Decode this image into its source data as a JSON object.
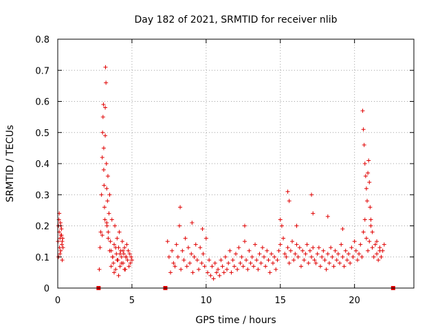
{
  "chart_data": {
    "type": "scatter",
    "title": "Day 182 of 2021, SRMTID for receiver nlib",
    "xlabel": "GPS time / hours",
    "ylabel": "SRMTID / TECUs",
    "xlim": [
      0,
      24
    ],
    "ylim": [
      0,
      0.8
    ],
    "xticks": [
      0,
      5,
      10,
      15,
      20
    ],
    "xtick_labels": [
      "0",
      "5",
      "10",
      "15",
      "20"
    ],
    "yticks": [
      0,
      0.1,
      0.2,
      0.3,
      0.4,
      0.5,
      0.6,
      0.7,
      0.8
    ],
    "ytick_labels": [
      "0",
      "0.1",
      "0.2",
      "0.3",
      "0.4",
      "0.5",
      "0.6",
      "0.7",
      "0.8"
    ],
    "grid": true,
    "marker": "plus",
    "color": "#e00000",
    "zero_markers_x": [
      2.75,
      7.25,
      22.6
    ],
    "series": [
      {
        "name": "srmtid",
        "x": [
          0.02,
          0.05,
          0.08,
          0.1,
          0.12,
          0.15,
          0.18,
          0.2,
          0.22,
          0.25,
          0.28,
          0.3,
          0.33,
          0.35,
          0.05,
          0.1,
          0.15,
          0.2,
          0.25,
          0.3,
          2.8,
          2.85,
          2.9,
          2.95,
          3.0,
          3.02,
          3.05,
          3.08,
          3.1,
          3.12,
          3.15,
          3.18,
          3.2,
          3.22,
          3.25,
          3.28,
          3.3,
          3.32,
          3.35,
          3.38,
          3.4,
          3.45,
          3.5,
          3.55,
          3.6,
          3.65,
          3.7,
          3.75,
          3.8,
          3.85,
          3.9,
          3.95,
          4.0,
          4.05,
          4.1,
          4.15,
          4.2,
          4.25,
          4.3,
          4.35,
          4.4,
          4.45,
          4.5,
          4.55,
          4.6,
          4.65,
          4.7,
          4.75,
          4.8,
          4.85,
          4.9,
          4.95,
          5.0,
          3.0,
          3.1,
          3.2,
          3.3,
          3.4,
          3.5,
          3.6,
          3.7,
          3.8,
          3.9,
          4.0,
          4.1,
          4.2,
          4.3,
          4.4,
          4.5,
          4.6,
          7.4,
          7.5,
          7.6,
          7.7,
          7.8,
          7.9,
          8.0,
          8.1,
          8.2,
          8.3,
          8.4,
          8.5,
          8.6,
          8.7,
          8.8,
          8.9,
          9.0,
          9.1,
          9.2,
          9.3,
          9.4,
          9.5,
          9.6,
          9.7,
          9.8,
          9.9,
          10.0,
          10.1,
          10.2,
          10.3,
          10.4,
          10.5,
          10.6,
          10.7,
          10.8,
          10.9,
          11.0,
          11.1,
          11.2,
          11.3,
          11.4,
          11.5,
          11.6,
          11.7,
          11.8,
          11.9,
          12.0,
          12.1,
          12.2,
          12.3,
          12.4,
          12.5,
          12.6,
          12.7,
          12.8,
          12.9,
          13.0,
          13.1,
          13.2,
          13.3,
          13.4,
          13.5,
          13.6,
          13.7,
          13.8,
          13.9,
          14.0,
          14.1,
          14.2,
          14.3,
          14.4,
          14.5,
          14.6,
          14.7,
          14.8,
          14.9,
          15.0,
          15.1,
          15.2,
          15.3,
          15.4,
          15.5,
          15.6,
          15.7,
          15.8,
          15.9,
          16.0,
          16.1,
          16.2,
          16.3,
          16.4,
          16.5,
          16.6,
          16.7,
          16.8,
          16.9,
          17.0,
          17.1,
          17.2,
          17.3,
          17.4,
          17.5,
          17.6,
          17.7,
          17.8,
          17.9,
          18.0,
          18.1,
          18.2,
          18.3,
          18.4,
          18.5,
          18.6,
          18.7,
          18.8,
          18.9,
          19.0,
          19.1,
          19.2,
          19.3,
          19.4,
          19.5,
          19.6,
          19.7,
          19.8,
          19.9,
          20.0,
          20.1,
          20.2,
          20.3,
          20.4,
          20.5,
          20.6,
          20.7,
          20.8,
          20.9,
          21.0,
          21.1,
          21.2,
          21.3,
          21.4,
          21.5,
          21.6,
          21.7,
          21.8,
          21.9,
          22.0,
          8.25,
          9.05,
          9.75,
          12.6,
          15.0,
          15.5,
          15.6,
          16.1,
          17.1,
          17.2,
          18.2,
          19.2,
          20.55,
          20.6,
          20.65,
          20.7,
          20.75,
          20.8,
          20.85,
          20.9,
          20.95,
          21.0,
          21.05,
          21.1,
          21.2,
          21.5,
          21.7
        ],
        "y": [
          0.15,
          0.2,
          0.22,
          0.18,
          0.13,
          0.16,
          0.21,
          0.12,
          0.17,
          0.19,
          0.14,
          0.09,
          0.16,
          0.13,
          0.1,
          0.24,
          0.11,
          0.2,
          0.17,
          0.15,
          0.06,
          0.13,
          0.18,
          0.3,
          0.42,
          0.5,
          0.55,
          0.59,
          0.45,
          0.33,
          0.26,
          0.22,
          0.58,
          0.71,
          0.66,
          0.4,
          0.32,
          0.2,
          0.28,
          0.36,
          0.18,
          0.24,
          0.3,
          0.15,
          0.12,
          0.22,
          0.1,
          0.08,
          0.14,
          0.2,
          0.06,
          0.11,
          0.16,
          0.09,
          0.13,
          0.18,
          0.07,
          0.12,
          0.1,
          0.15,
          0.08,
          0.11,
          0.13,
          0.06,
          0.1,
          0.14,
          0.09,
          0.12,
          0.07,
          0.11,
          0.08,
          0.1,
          0.09,
          0.17,
          0.38,
          0.49,
          0.21,
          0.16,
          0.12,
          0.07,
          0.1,
          0.05,
          0.13,
          0.09,
          0.04,
          0.11,
          0.08,
          0.12,
          0.06,
          0.1,
          0.15,
          0.1,
          0.05,
          0.12,
          0.08,
          0.07,
          0.14,
          0.1,
          0.2,
          0.06,
          0.12,
          0.09,
          0.16,
          0.07,
          0.13,
          0.08,
          0.11,
          0.05,
          0.1,
          0.14,
          0.09,
          0.06,
          0.13,
          0.08,
          0.11,
          0.07,
          0.16,
          0.05,
          0.09,
          0.04,
          0.07,
          0.03,
          0.08,
          0.05,
          0.06,
          0.04,
          0.09,
          0.07,
          0.05,
          0.1,
          0.06,
          0.08,
          0.12,
          0.05,
          0.09,
          0.07,
          0.11,
          0.06,
          0.13,
          0.08,
          0.1,
          0.07,
          0.15,
          0.09,
          0.06,
          0.12,
          0.08,
          0.1,
          0.07,
          0.14,
          0.09,
          0.06,
          0.11,
          0.08,
          0.13,
          0.1,
          0.07,
          0.12,
          0.09,
          0.05,
          0.11,
          0.08,
          0.1,
          0.06,
          0.09,
          0.12,
          0.14,
          0.2,
          0.16,
          0.11,
          0.1,
          0.13,
          0.08,
          0.12,
          0.15,
          0.09,
          0.11,
          0.14,
          0.1,
          0.13,
          0.07,
          0.12,
          0.09,
          0.11,
          0.14,
          0.08,
          0.12,
          0.1,
          0.13,
          0.09,
          0.08,
          0.11,
          0.13,
          0.07,
          0.1,
          0.12,
          0.09,
          0.06,
          0.11,
          0.08,
          0.13,
          0.1,
          0.07,
          0.12,
          0.09,
          0.11,
          0.08,
          0.14,
          0.1,
          0.07,
          0.12,
          0.09,
          0.11,
          0.08,
          0.13,
          0.1,
          0.15,
          0.12,
          0.09,
          0.11,
          0.14,
          0.1,
          0.18,
          0.22,
          0.16,
          0.12,
          0.15,
          0.2,
          0.13,
          0.1,
          0.14,
          0.11,
          0.09,
          0.13,
          0.1,
          0.12,
          0.14,
          0.26,
          0.21,
          0.19,
          0.2,
          0.22,
          0.31,
          0.28,
          0.2,
          0.3,
          0.24,
          0.23,
          0.19,
          0.57,
          0.51,
          0.46,
          0.4,
          0.36,
          0.32,
          0.28,
          0.37,
          0.41,
          0.34,
          0.26,
          0.22,
          0.18,
          0.15,
          0.12
        ]
      }
    ]
  }
}
